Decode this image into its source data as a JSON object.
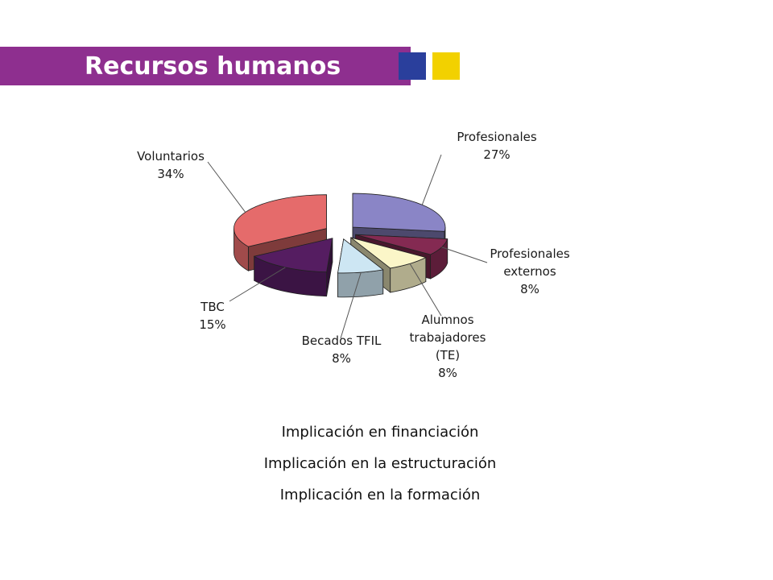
{
  "header": {
    "title": "Recursos humanos",
    "band_color": "#8e2f8f",
    "square_colors": [
      "#2a3f9c",
      "#f2d100"
    ]
  },
  "chart_data": {
    "type": "pie",
    "style": "3d-exploded",
    "title": "",
    "slices": [
      {
        "name": "Profesionales",
        "value": 27,
        "label": "27%",
        "color": "#8a85c6"
      },
      {
        "name": "Profesionales externos",
        "value": 8,
        "label": "8%",
        "color": "#842a52"
      },
      {
        "name": "Alumnos trabajadores (TE)",
        "value": 8,
        "label": "8%",
        "color": "#fbf6c8"
      },
      {
        "name": "Becados TFIL",
        "value": 8,
        "label": "8%",
        "color": "#cde6f3"
      },
      {
        "name": "TBC",
        "value": 15,
        "label": "15%",
        "color": "#551d61"
      },
      {
        "name": "Voluntarios",
        "value": 34,
        "label": "34%",
        "color": "#e56b6b"
      }
    ]
  },
  "bullets": [
    "Implicación en financiación",
    "Implicación en la estructuración",
    "Implicación en la formación"
  ]
}
